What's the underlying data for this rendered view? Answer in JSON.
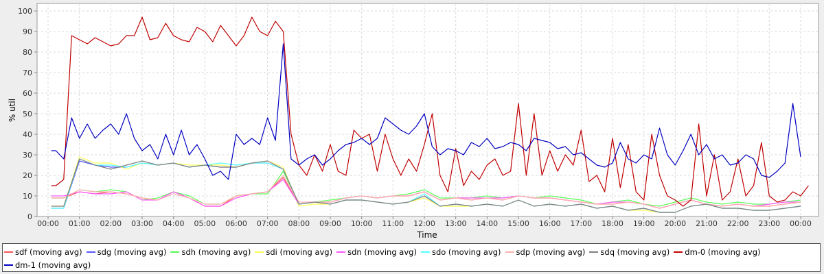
{
  "chart_data": {
    "type": "line",
    "xlabel": "Time",
    "ylabel": "% util",
    "ylim": [
      0,
      100
    ],
    "yticks": [
      0,
      10,
      20,
      30,
      40,
      50,
      60,
      70,
      80,
      90,
      100
    ],
    "xlim_hours": [
      -0.35,
      24.55
    ],
    "xtick_labels": [
      "00:00",
      "01:00",
      "02:00",
      "03:00",
      "04:00",
      "05:00",
      "06:00",
      "07:00",
      "08:00",
      "09:00",
      "10:00",
      "11:00",
      "12:00",
      "13:00",
      "14:00",
      "15:00",
      "16:00",
      "17:00",
      "18:00",
      "19:00",
      "20:00",
      "21:00",
      "22:00",
      "23:00",
      "00:00"
    ],
    "grid": true,
    "legend_position": "bottom",
    "series": [
      {
        "name": "sdf (moving avg)",
        "color": "#ff5555",
        "x_start": 0.5,
        "x_step": 0.5,
        "values": [
          9,
          12,
          11,
          12,
          11,
          9,
          8,
          12,
          9,
          5,
          5,
          10,
          11,
          12,
          19,
          6,
          7,
          7,
          9,
          10,
          9,
          10,
          10,
          12,
          8,
          9,
          8,
          9,
          8,
          10,
          9,
          9,
          8,
          7,
          6,
          6,
          7,
          6,
          4,
          6,
          8,
          6,
          5,
          6,
          5,
          5,
          6,
          7
        ]
      },
      {
        "name": "sdg (moving avg)",
        "color": "#5555ff",
        "x_start": 0.5,
        "x_step": 0.5,
        "values": [
          4,
          27,
          25,
          24,
          24,
          26,
          25,
          26,
          24,
          25,
          24,
          24,
          26,
          26,
          23,
          6,
          7,
          6,
          8,
          8,
          7,
          6,
          7,
          10,
          5,
          6,
          5,
          6,
          5,
          8,
          5,
          6,
          5,
          6,
          4,
          5,
          3,
          4,
          2,
          2,
          5,
          6,
          4,
          4,
          3,
          3,
          4,
          5
        ]
      },
      {
        "name": "sdh (moving avg)",
        "color": "#55ff55",
        "x_start": 0.5,
        "x_step": 0.5,
        "values": [
          9,
          13,
          12,
          13,
          12,
          8,
          9,
          12,
          10,
          6,
          6,
          10,
          11,
          11,
          22,
          6,
          7,
          8,
          9,
          10,
          9,
          10,
          11,
          13,
          9,
          9,
          9,
          10,
          9,
          10,
          9,
          10,
          9,
          8,
          6,
          7,
          8,
          6,
          5,
          7,
          9,
          7,
          6,
          7,
          6,
          6,
          7,
          8
        ]
      },
      {
        "name": "sdi (moving avg)",
        "color": "#ffff55",
        "x_start": 0.5,
        "x_step": 0.5,
        "values": [
          5,
          29,
          26,
          26,
          23,
          26,
          25,
          26,
          25,
          25,
          25,
          24,
          26,
          27,
          24,
          5,
          6,
          6,
          8,
          8,
          7,
          6,
          7,
          9,
          5,
          5,
          5,
          6,
          5,
          8,
          5,
          6,
          5,
          6,
          4,
          5,
          3,
          3,
          2,
          2,
          5,
          6,
          4,
          4,
          3,
          3,
          4,
          5
        ]
      },
      {
        "name": "sdn (moving avg)",
        "color": "#ff55ff",
        "x_start": 0.5,
        "x_step": 0.5,
        "values": [
          10,
          12,
          11,
          11,
          12,
          8,
          8,
          12,
          9,
          5,
          5,
          9,
          11,
          12,
          18,
          6,
          7,
          7,
          9,
          10,
          9,
          10,
          10,
          12,
          8,
          9,
          9,
          9,
          9,
          10,
          9,
          9,
          8,
          7,
          6,
          7,
          7,
          6,
          4,
          6,
          8,
          6,
          5,
          6,
          5,
          6,
          7,
          7
        ]
      },
      {
        "name": "sdo (moving avg)",
        "color": "#55ffff",
        "x_start": 0.5,
        "x_step": 0.5,
        "values": [
          4,
          28,
          25,
          25,
          24,
          26,
          25,
          26,
          24,
          25,
          26,
          25,
          26,
          26,
          23,
          6,
          7,
          6,
          8,
          8,
          7,
          6,
          7,
          11,
          5,
          6,
          5,
          6,
          5,
          8,
          5,
          6,
          5,
          6,
          4,
          5,
          3,
          4,
          2,
          2,
          5,
          6,
          4,
          4,
          3,
          3,
          4,
          5
        ]
      },
      {
        "name": "sdp (moving avg)",
        "color": "#ffafaf",
        "x_start": 0.5,
        "x_step": 0.5,
        "values": [
          9,
          13,
          12,
          12,
          11,
          9,
          8,
          11,
          9,
          6,
          6,
          10,
          11,
          12,
          20,
          7,
          7,
          7,
          9,
          10,
          9,
          10,
          10,
          12,
          8,
          9,
          8,
          9,
          8,
          10,
          9,
          9,
          8,
          7,
          6,
          6,
          7,
          6,
          4,
          6,
          8,
          6,
          5,
          6,
          5,
          5,
          6,
          7
        ]
      },
      {
        "name": "sdq (moving avg)",
        "color": "#808080",
        "x_start": 0.5,
        "x_step": 0.5,
        "values": [
          5,
          28,
          25,
          23,
          25,
          27,
          25,
          26,
          24,
          25,
          24,
          24,
          26,
          27,
          23,
          6,
          7,
          6,
          8,
          8,
          7,
          6,
          7,
          10,
          5,
          6,
          5,
          6,
          5,
          8,
          5,
          6,
          5,
          6,
          4,
          5,
          3,
          4,
          2,
          2,
          5,
          6,
          4,
          4,
          3,
          3,
          4,
          5
        ]
      },
      {
        "name": "dm-0 (moving avg)",
        "color": "#c00000",
        "x_start": 0.25,
        "x_step": 0.25,
        "values": [
          15,
          18,
          88,
          86,
          84,
          87,
          85,
          83,
          84,
          88,
          88,
          97,
          86,
          87,
          94,
          88,
          86,
          85,
          92,
          90,
          85,
          93,
          88,
          83,
          88,
          97,
          90,
          88,
          95,
          90,
          40,
          25,
          20,
          30,
          22,
          35,
          22,
          20,
          42,
          38,
          40,
          22,
          40,
          28,
          20,
          28,
          22,
          35,
          50,
          20,
          12,
          33,
          15,
          22,
          18,
          25,
          28,
          20,
          22,
          55,
          20,
          50,
          20,
          32,
          22,
          30,
          25,
          42,
          17,
          20,
          12,
          38,
          14,
          35,
          12,
          8,
          40,
          20,
          10,
          8,
          5,
          8,
          45,
          10,
          30,
          8,
          12,
          28,
          10,
          15,
          36,
          10,
          7,
          8,
          12,
          10,
          15
        ]
      },
      {
        "name": "dm-1 (moving avg)",
        "color": "#0000c0",
        "x_start": 0.25,
        "x_step": 0.25,
        "values": [
          32,
          28,
          48,
          38,
          45,
          38,
          42,
          45,
          40,
          50,
          38,
          32,
          35,
          28,
          40,
          30,
          42,
          30,
          35,
          28,
          20,
          22,
          18,
          40,
          35,
          38,
          35,
          48,
          37,
          84,
          28,
          25,
          28,
          30,
          25,
          28,
          32,
          35,
          36,
          38,
          35,
          38,
          48,
          45,
          42,
          40,
          44,
          50,
          34,
          30,
          33,
          32,
          30,
          36,
          34,
          38,
          33,
          34,
          36,
          35,
          32,
          38,
          37,
          36,
          33,
          34,
          30,
          31,
          28,
          25,
          24,
          26,
          36,
          28,
          26,
          30,
          28,
          43,
          30,
          25,
          32,
          40,
          30,
          35,
          28,
          30,
          25,
          26,
          30,
          28,
          20,
          19,
          22,
          26,
          55,
          29
        ]
      }
    ]
  }
}
